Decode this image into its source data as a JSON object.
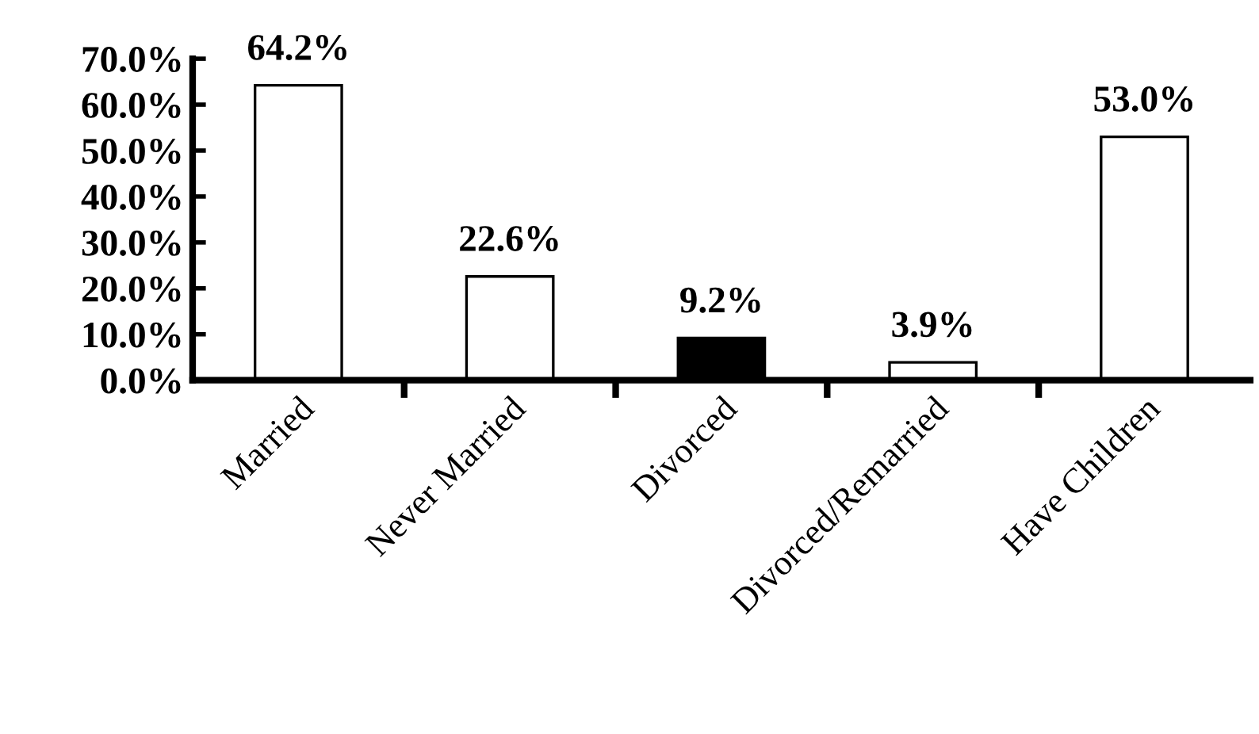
{
  "chart_data": {
    "type": "bar",
    "categories": [
      "Married",
      "Never Married",
      "Divorced",
      "Divorced/Remarried",
      "Have Children"
    ],
    "values": [
      64.2,
      22.6,
      9.2,
      3.9,
      53.0
    ],
    "colors": [
      "#ffffff",
      "#ffffff",
      "#000000",
      "#ffffff",
      "#ffffff"
    ],
    "value_labels": [
      "64.2%",
      "22.6%",
      "9.2%",
      "3.9%",
      "53.0%"
    ],
    "ylim": [
      0,
      70
    ],
    "yticks": [
      {
        "value": 0,
        "label": "0.0%"
      },
      {
        "value": 10,
        "label": "10.0%"
      },
      {
        "value": 20,
        "label": "20.0%"
      },
      {
        "value": 30,
        "label": "30.0%"
      },
      {
        "value": 40,
        "label": "40.0%"
      },
      {
        "value": 50,
        "label": "50.0%"
      },
      {
        "value": 60,
        "label": "60.0%"
      },
      {
        "value": 70,
        "label": "70.0%"
      }
    ],
    "grid": false,
    "legend": false
  }
}
